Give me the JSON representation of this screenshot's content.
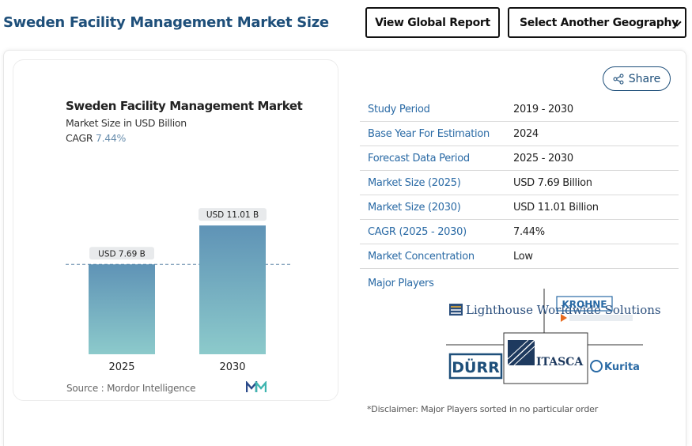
{
  "header": {
    "title": "Sweden Facility Management Market Size",
    "global_report_label": "View Global Report",
    "geography_select_value": "Select Another Geography"
  },
  "share": {
    "label": "Share"
  },
  "chart": {
    "title": "Sweden Facility Management Market",
    "subtitle": "Market Size in USD Billion",
    "cagr_label": "CAGR",
    "cagr_value": "7.44%",
    "source_label": "Source :",
    "source_value": "Mordor Intelligence"
  },
  "chart_data": {
    "type": "bar",
    "categories": [
      "2025",
      "2030"
    ],
    "values": [
      7.69,
      11.01
    ],
    "data_labels": [
      "USD 7.69 B",
      "USD 11.01 B"
    ],
    "title": "Sweden Facility Management Market",
    "ylabel": "Market Size in USD Billion",
    "ylim": [
      0,
      12.5
    ],
    "grid": false,
    "legend": "none",
    "reference_line_value": 7.69,
    "colors": {
      "bar_top": "#5f93b6",
      "bar_bottom": "#8ccacb",
      "label_bg": "#e8eaec"
    }
  },
  "info": {
    "rows": [
      {
        "key": "Study Period",
        "value": "2019 - 2030"
      },
      {
        "key": "Base Year For Estimation",
        "value": "2024"
      },
      {
        "key": "Forecast Data Period",
        "value": "2025 - 2030"
      },
      {
        "key": "Market Size (2025)",
        "value": "USD 7.69 Billion"
      },
      {
        "key": "Market Size (2030)",
        "value": "USD 11.01 Billion"
      },
      {
        "key": "CAGR (2025 - 2030)",
        "value": "7.44%"
      },
      {
        "key": "Market Concentration",
        "value": "Low"
      }
    ],
    "major_players_label": "Major Players",
    "players": [
      "Lighthouse Worldwide Solutions",
      "KROHNE",
      "DÜRR",
      "ITASCA",
      "Kurita"
    ]
  },
  "disclaimer": "*Disclaimer: Major Players sorted in no particular order",
  "colors": {
    "heading": "#1e4f7a",
    "key_text": "#2a6aa5"
  }
}
